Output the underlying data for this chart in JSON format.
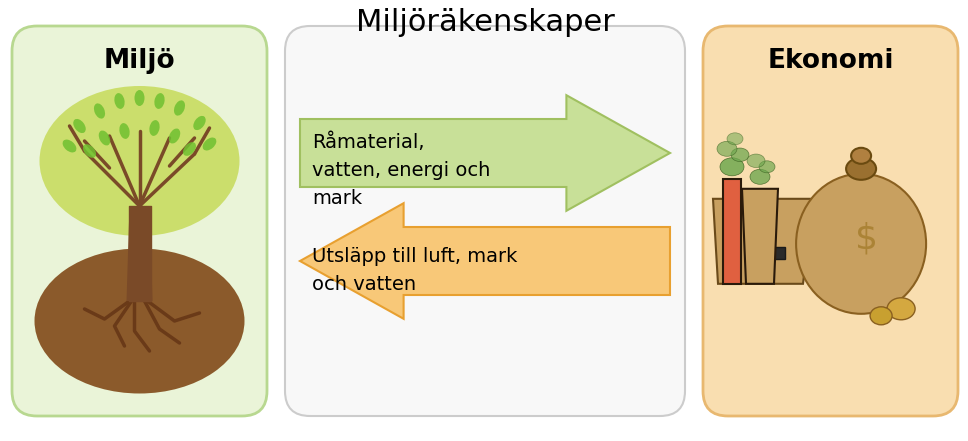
{
  "title": "Miljöräkenskaper",
  "title_fontsize": 22,
  "left_box_label": "Miljö",
  "right_box_label": "Ekonomi",
  "arrow_right_text": "Råmaterial,\nvatten, energi och\nmark",
  "arrow_left_text": "Utsläpp till luft, mark\noch vatten",
  "left_box_color": "#eaf4d8",
  "left_box_edge": "#b8d890",
  "right_box_color": "#f9deb0",
  "right_box_edge": "#e8b870",
  "middle_box_color": "#f8f8f8",
  "middle_box_edge": "#cccccc",
  "arrow_right_color": "#c8e098",
  "arrow_right_edge": "#a0c060",
  "arrow_left_color": "#f8c878",
  "arrow_left_edge": "#e8a030",
  "bg_color": "#ffffff",
  "label_fontsize": 19,
  "arrow_text_fontsize": 14,
  "tree_trunk_color": "#7a4a28",
  "tree_canopy_outer": "#c8dc60",
  "tree_canopy_inner": "#d8ec70",
  "tree_ground_color": "#8B5A2B",
  "tree_root_color": "#6a3a18",
  "factory_chimney_orange": "#e06040",
  "factory_chimney_tan": "#c8a060",
  "factory_body_color": "#c8a060",
  "factory_smoke_color": "#70a850",
  "bag_color": "#c8a060",
  "bag_shadow": "#b09050"
}
